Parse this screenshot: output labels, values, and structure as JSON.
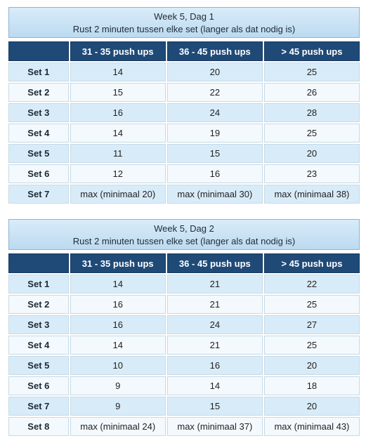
{
  "tables": [
    {
      "title": "Week 5, Dag 1",
      "subtitle": "Rust 2 minuten tussen elke set (langer als dat nodig is)",
      "columns": [
        "31 - 35 push ups",
        "36 - 45 push ups",
        "> 45 push ups"
      ],
      "rows": [
        {
          "label": "Set 1",
          "values": [
            "14",
            "20",
            "25"
          ]
        },
        {
          "label": "Set 2",
          "values": [
            "15",
            "22",
            "26"
          ]
        },
        {
          "label": "Set 3",
          "values": [
            "16",
            "24",
            "28"
          ]
        },
        {
          "label": "Set 4",
          "values": [
            "14",
            "19",
            "25"
          ]
        },
        {
          "label": "Set 5",
          "values": [
            "11",
            "15",
            "20"
          ]
        },
        {
          "label": "Set 6",
          "values": [
            "12",
            "16",
            "23"
          ]
        },
        {
          "label": "Set 7",
          "values": [
            "max (minimaal 20)",
            "max (minimaal 30)",
            "max (minimaal 38)"
          ]
        }
      ]
    },
    {
      "title": "Week 5, Dag 2",
      "subtitle": "Rust 2 minuten tussen elke set (langer als dat nodig is)",
      "columns": [
        "31 - 35 push ups",
        "36 - 45 push ups",
        "> 45 push ups"
      ],
      "rows": [
        {
          "label": "Set 1",
          "values": [
            "14",
            "21",
            "22"
          ]
        },
        {
          "label": "Set 2",
          "values": [
            "16",
            "21",
            "25"
          ]
        },
        {
          "label": "Set 3",
          "values": [
            "16",
            "24",
            "27"
          ]
        },
        {
          "label": "Set 4",
          "values": [
            "14",
            "21",
            "25"
          ]
        },
        {
          "label": "Set 5",
          "values": [
            "10",
            "16",
            "20"
          ]
        },
        {
          "label": "Set 6",
          "values": [
            "9",
            "14",
            "18"
          ]
        },
        {
          "label": "Set 7",
          "values": [
            "9",
            "15",
            "20"
          ]
        },
        {
          "label": "Set 8",
          "values": [
            "max (minimaal 24)",
            "max (minimaal 37)",
            "max (minimaal 43)"
          ]
        }
      ]
    }
  ]
}
